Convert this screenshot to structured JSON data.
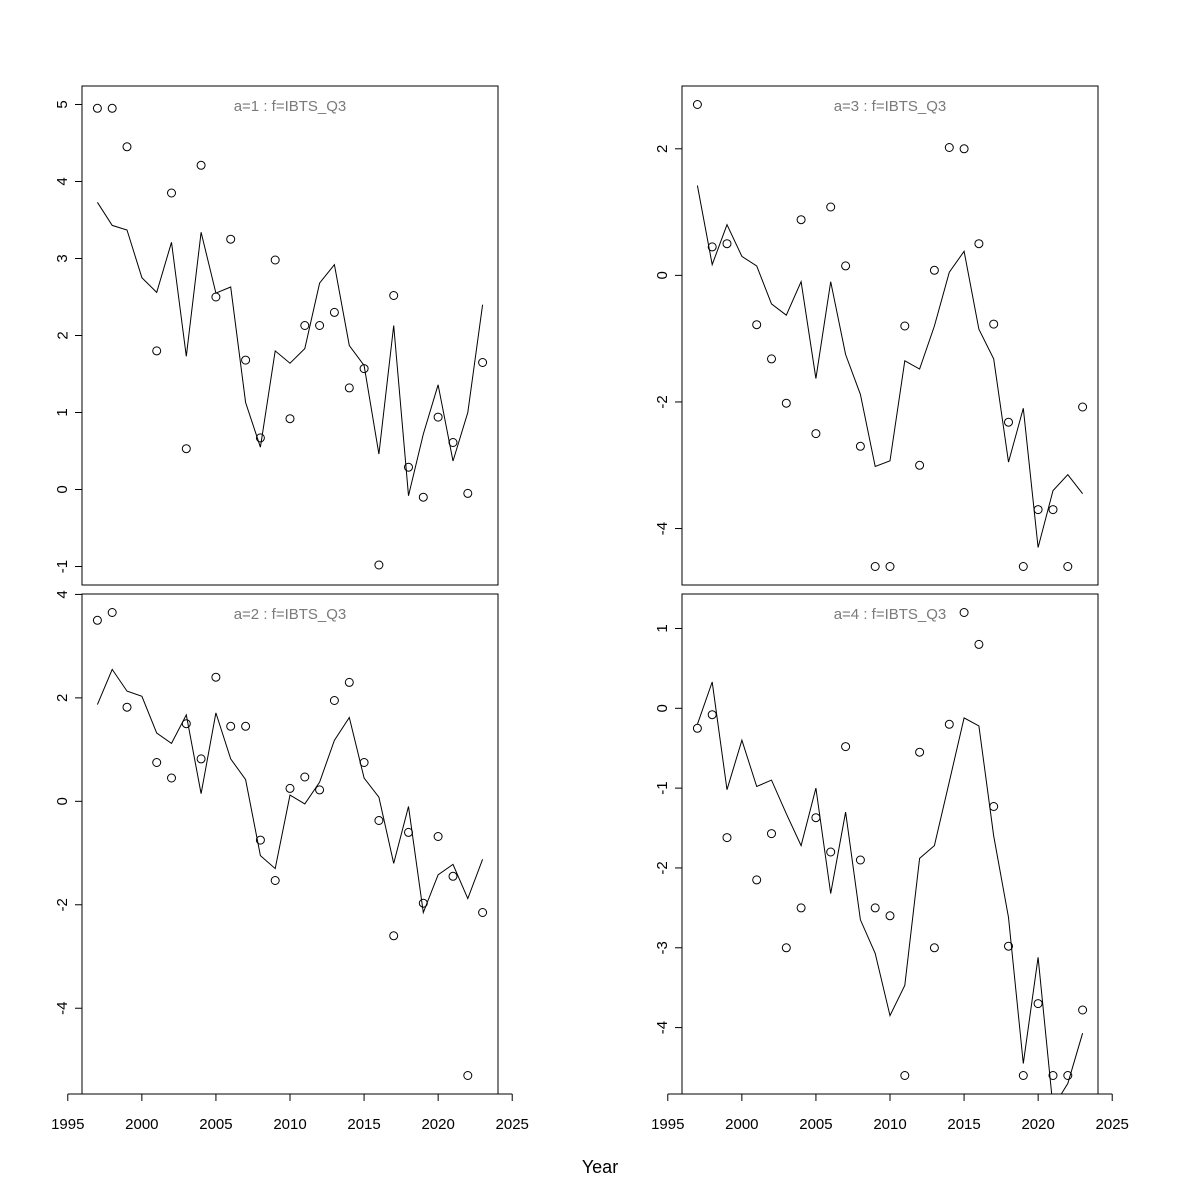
{
  "xlabel": "Year",
  "chart_data": [
    {
      "type": "scatter",
      "title": "a=1  :  f=IBTS_Q3",
      "xlim": [
        1997,
        2023
      ],
      "ylim": [
        -1.0,
        5.0
      ],
      "x_ticks": [
        "1995",
        "2000",
        "2005",
        "2010",
        "2015",
        "2020",
        "2025"
      ],
      "y_ticks": [
        "-1",
        "0",
        "1",
        "2",
        "3",
        "4",
        "5"
      ],
      "series": [
        {
          "kind": "points",
          "x": [
            1997,
            1998,
            1999,
            2001,
            2002,
            2003,
            2004,
            2005,
            2006,
            2007,
            2008,
            2009,
            2010,
            2011,
            2012,
            2013,
            2014,
            2015,
            2016,
            2017,
            2018,
            2019,
            2020,
            2021,
            2022,
            2023
          ],
          "y": [
            4.95,
            4.95,
            4.45,
            1.8,
            3.85,
            0.53,
            4.21,
            2.5,
            3.25,
            1.68,
            0.67,
            2.98,
            0.92,
            2.13,
            2.13,
            2.3,
            1.32,
            1.57,
            -0.98,
            2.52,
            0.29,
            -0.1,
            0.94,
            0.61,
            -0.05,
            1.65
          ]
        },
        {
          "kind": "line",
          "x": [
            1997,
            1998,
            1999,
            2000,
            2001,
            2002,
            2003,
            2004,
            2005,
            2006,
            2007,
            2008,
            2009,
            2010,
            2011,
            2012,
            2013,
            2014,
            2015,
            2016,
            2017,
            2018,
            2019,
            2020,
            2021,
            2022,
            2023
          ],
          "y": [
            3.73,
            3.43,
            3.37,
            2.75,
            2.56,
            3.21,
            1.73,
            3.34,
            2.55,
            2.63,
            1.13,
            0.55,
            1.8,
            1.64,
            1.83,
            2.68,
            2.92,
            1.87,
            1.61,
            0.46,
            2.13,
            -0.08,
            0.72,
            1.36,
            0.37,
            1.0,
            2.4
          ]
        }
      ]
    },
    {
      "type": "scatter",
      "title": "a=3  :  f=IBTS_Q3",
      "xlim": [
        1997,
        2023
      ],
      "ylim": [
        -4.6,
        2.7
      ],
      "x_ticks": [
        "1995",
        "2000",
        "2005",
        "2010",
        "2015",
        "2020",
        "2025"
      ],
      "y_ticks": [
        "-4",
        "-2",
        "0",
        "2"
      ],
      "series": [
        {
          "kind": "points",
          "x": [
            1997,
            1998,
            1999,
            2001,
            2002,
            2003,
            2004,
            2005,
            2006,
            2007,
            2008,
            2009,
            2010,
            2011,
            2012,
            2013,
            2014,
            2015,
            2016,
            2017,
            2018,
            2019,
            2020,
            2021,
            2022,
            2023
          ],
          "y": [
            2.7,
            0.45,
            0.5,
            -0.78,
            -1.32,
            -2.02,
            0.88,
            -2.5,
            1.08,
            0.15,
            -2.7,
            -4.6,
            -4.6,
            -0.8,
            -3.0,
            0.08,
            2.02,
            2.0,
            0.5,
            -0.77,
            -2.32,
            -4.6,
            -3.7,
            -3.7,
            -4.6,
            -2.08
          ]
        },
        {
          "kind": "line",
          "x": [
            1997,
            1998,
            1999,
            2000,
            2001,
            2002,
            2003,
            2004,
            2005,
            2006,
            2007,
            2008,
            2009,
            2010,
            2011,
            2012,
            2013,
            2014,
            2015,
            2016,
            2017,
            2018,
            2019,
            2020,
            2021,
            2022,
            2023
          ],
          "y": [
            1.42,
            0.17,
            0.8,
            0.3,
            0.15,
            -0.45,
            -0.63,
            -0.1,
            -1.63,
            -0.1,
            -1.25,
            -1.88,
            -3.02,
            -2.93,
            -1.35,
            -1.48,
            -0.8,
            0.05,
            0.38,
            -0.85,
            -1.32,
            -2.95,
            -2.1,
            -4.3,
            -3.4,
            -3.15,
            -3.45
          ]
        }
      ]
    },
    {
      "type": "scatter",
      "title": "a=2  :  f=IBTS_Q3",
      "xlim": [
        1997,
        2023
      ],
      "ylim": [
        -5.3,
        3.65
      ],
      "x_ticks": [
        "1995",
        "2000",
        "2005",
        "2010",
        "2015",
        "2020",
        "2025"
      ],
      "y_ticks": [
        "-4",
        "-2",
        "0",
        "2",
        "4"
      ],
      "series": [
        {
          "kind": "points",
          "x": [
            1997,
            1998,
            1999,
            2001,
            2002,
            2003,
            2004,
            2005,
            2006,
            2007,
            2008,
            2009,
            2010,
            2011,
            2012,
            2013,
            2014,
            2015,
            2016,
            2017,
            2018,
            2019,
            2020,
            2021,
            2022,
            2023
          ],
          "y": [
            3.5,
            3.65,
            1.82,
            0.75,
            0.45,
            1.5,
            0.82,
            2.4,
            1.45,
            1.45,
            -0.75,
            -1.53,
            0.25,
            0.47,
            0.22,
            1.95,
            2.3,
            0.75,
            -0.37,
            -2.6,
            -0.6,
            -1.97,
            -0.68,
            -1.45,
            -5.3,
            -2.15
          ]
        },
        {
          "kind": "line",
          "x": [
            1997,
            1998,
            1999,
            2000,
            2001,
            2002,
            2003,
            2004,
            2005,
            2006,
            2007,
            2008,
            2009,
            2010,
            2011,
            2012,
            2013,
            2014,
            2015,
            2016,
            2017,
            2018,
            2019,
            2020,
            2021,
            2022,
            2023
          ],
          "y": [
            1.87,
            2.55,
            2.13,
            2.03,
            1.32,
            1.12,
            1.67,
            0.15,
            1.71,
            0.82,
            0.42,
            -1.05,
            -1.3,
            0.12,
            -0.05,
            0.37,
            1.18,
            1.62,
            0.45,
            0.08,
            -1.2,
            -0.1,
            -2.15,
            -1.42,
            -1.22,
            -1.88,
            -1.12
          ]
        }
      ]
    },
    {
      "type": "scatter",
      "title": "a=4  :  f=IBTS_Q3",
      "xlim": [
        1997,
        2023
      ],
      "ylim": [
        -4.6,
        1.2
      ],
      "x_ticks": [
        "1995",
        "2000",
        "2005",
        "2010",
        "2015",
        "2020",
        "2025"
      ],
      "y_ticks": [
        "-4",
        "-3",
        "-2",
        "-1",
        "0",
        "1"
      ],
      "series": [
        {
          "kind": "points",
          "x": [
            1997,
            1998,
            1999,
            2001,
            2002,
            2003,
            2004,
            2005,
            2006,
            2007,
            2008,
            2009,
            2010,
            2011,
            2012,
            2013,
            2014,
            2015,
            2016,
            2017,
            2018,
            2019,
            2020,
            2021,
            2022,
            2023
          ],
          "y": [
            -0.25,
            -0.08,
            -1.62,
            -2.15,
            -1.57,
            -3.0,
            -2.5,
            -1.37,
            -1.8,
            -0.48,
            -1.9,
            -2.5,
            -2.6,
            -4.6,
            -0.55,
            -3.0,
            -0.2,
            1.2,
            0.8,
            -1.23,
            -2.98,
            -4.6,
            -3.7,
            -4.6,
            -4.6,
            -3.78
          ]
        },
        {
          "kind": "line",
          "x": [
            1997,
            1998,
            1999,
            2000,
            2001,
            2002,
            2003,
            2004,
            2005,
            2006,
            2007,
            2008,
            2009,
            2010,
            2011,
            2012,
            2013,
            2014,
            2015,
            2016,
            2017,
            2018,
            2019,
            2020,
            2021,
            2022,
            2023
          ],
          "y": [
            -0.2,
            0.33,
            -1.02,
            -0.4,
            -0.98,
            -0.9,
            -1.32,
            -1.72,
            -1.0,
            -2.32,
            -1.3,
            -2.65,
            -3.07,
            -3.85,
            -3.47,
            -1.88,
            -1.72,
            -0.92,
            -0.12,
            -0.22,
            -1.6,
            -2.62,
            -4.45,
            -3.12,
            -5.0,
            -4.7,
            -4.07
          ]
        }
      ]
    }
  ]
}
